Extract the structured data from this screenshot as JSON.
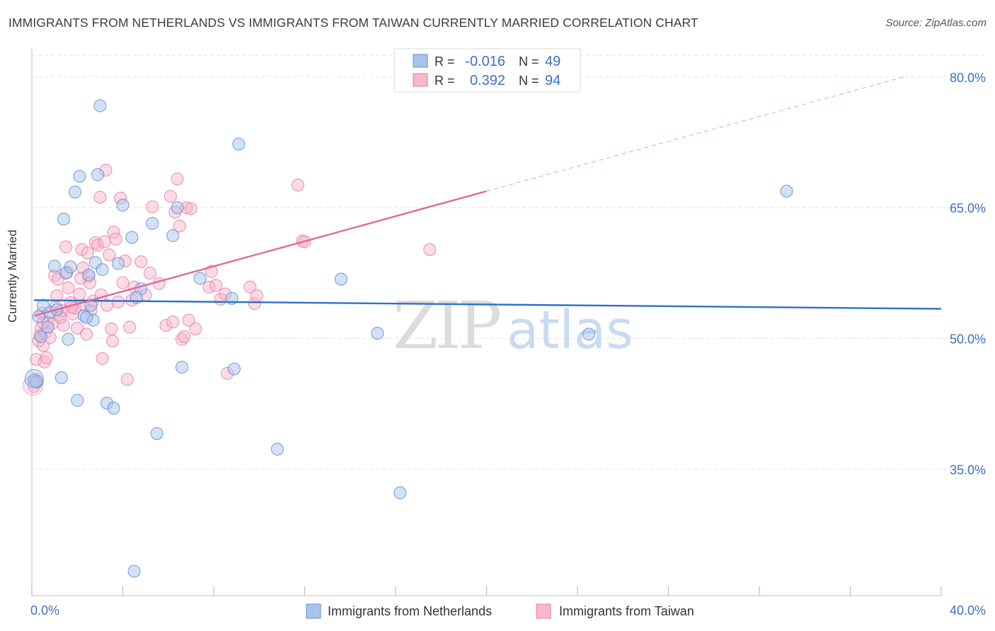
{
  "title": "IMMIGRANTS FROM NETHERLANDS VS IMMIGRANTS FROM TAIWAN CURRENTLY MARRIED CORRELATION CHART",
  "source": "Source: ZipAtlas.com",
  "watermark": {
    "zip": "ZIP",
    "atlas": "atlas"
  },
  "legend_stats": [
    {
      "r_label": "R =",
      "r_value": "-0.016",
      "n_label": "N =",
      "n_value": "49"
    },
    {
      "r_label": "R =",
      "r_value": "0.392",
      "n_label": "N =",
      "n_value": "94"
    }
  ],
  "colors": {
    "blue_fill": "#a9c4ec",
    "blue_stroke": "#5c8fd6",
    "blue_line": "#2f6fcc",
    "pink_fill": "#f7b8cb",
    "pink_stroke": "#e67ea0",
    "pink_line": "#e0689a",
    "axis_text": "#3b72c4",
    "grid": "#e2e2e2"
  },
  "chart_data": {
    "type": "scatter",
    "title": "IMMIGRANTS FROM NETHERLANDS VS IMMIGRANTS FROM TAIWAN CURRENTLY MARRIED CORRELATION CHART",
    "xlabel": "",
    "ylabel": "Currently Married",
    "xlim": [
      0,
      40
    ],
    "ylim": [
      20.5,
      82.5
    ],
    "x_tick_labels": [
      "0.0%",
      "40.0%"
    ],
    "y_ticks": [
      35,
      50,
      65,
      80
    ],
    "y_tick_labels": [
      "35.0%",
      "50.0%",
      "65.0%",
      "80.0%"
    ],
    "grid": true,
    "legend_position": "bottom-center",
    "series": [
      {
        "name": "Immigrants from Netherlands",
        "color": "#a9c4ec",
        "r": -0.016,
        "n": 49,
        "trend": {
          "x": [
            0.1,
            40
          ],
          "y": [
            54.4,
            53.4
          ]
        },
        "points": [
          [
            0.1,
            45.2
          ],
          [
            0.3,
            52.5
          ],
          [
            0.4,
            50.2
          ],
          [
            0.5,
            53.8
          ],
          [
            0.7,
            51.3
          ],
          [
            0.8,
            53.0
          ],
          [
            1.0,
            58.3
          ],
          [
            1.1,
            53.3
          ],
          [
            1.3,
            45.5
          ],
          [
            1.4,
            63.7
          ],
          [
            1.5,
            57.5
          ],
          [
            1.6,
            49.9
          ],
          [
            1.7,
            58.2
          ],
          [
            1.9,
            66.8
          ],
          [
            2.0,
            42.9
          ],
          [
            2.1,
            68.6
          ],
          [
            2.3,
            52.6
          ],
          [
            2.5,
            57.3
          ],
          [
            2.6,
            53.8
          ],
          [
            2.7,
            52.1
          ],
          [
            2.8,
            58.7
          ],
          [
            2.9,
            68.8
          ],
          [
            3.0,
            76.7
          ],
          [
            3.1,
            57.9
          ],
          [
            3.3,
            42.6
          ],
          [
            3.6,
            42.0
          ],
          [
            3.8,
            58.6
          ],
          [
            4.0,
            65.3
          ],
          [
            4.4,
            61.6
          ],
          [
            4.5,
            23.3
          ],
          [
            4.8,
            55.7
          ],
          [
            5.3,
            63.2
          ],
          [
            5.5,
            39.1
          ],
          [
            6.2,
            61.8
          ],
          [
            6.4,
            65.0
          ],
          [
            6.6,
            46.7
          ],
          [
            7.4,
            56.9
          ],
          [
            8.8,
            54.6
          ],
          [
            8.9,
            46.5
          ],
          [
            9.1,
            72.3
          ],
          [
            10.8,
            37.3
          ],
          [
            13.6,
            56.8
          ],
          [
            15.2,
            50.6
          ],
          [
            16.2,
            32.3
          ],
          [
            24.5,
            50.5
          ],
          [
            33.2,
            66.9
          ],
          [
            0.2,
            45.0
          ],
          [
            2.4,
            52.4
          ],
          [
            4.6,
            54.7
          ]
        ]
      },
      {
        "name": "Immigrants from Taiwan",
        "color": "#f7b8cb",
        "r": 0.392,
        "n": 94,
        "trend": {
          "x": [
            0.1,
            20
          ],
          "y": [
            52.6,
            66.9
          ]
        },
        "trend_extension": {
          "x": [
            20,
            38.5
          ],
          "y": [
            66.9,
            80.1
          ]
        },
        "points": [
          [
            0.1,
            44.5
          ],
          [
            0.15,
            45.3
          ],
          [
            0.2,
            47.6
          ],
          [
            0.25,
            45.1
          ],
          [
            0.3,
            49.7
          ],
          [
            0.35,
            50.4
          ],
          [
            0.4,
            51.2
          ],
          [
            0.45,
            52.9
          ],
          [
            0.5,
            49.2
          ],
          [
            0.55,
            47.3
          ],
          [
            0.6,
            50.7
          ],
          [
            0.65,
            47.8
          ],
          [
            0.7,
            51.9
          ],
          [
            0.8,
            50.1
          ],
          [
            0.9,
            51.7
          ],
          [
            1.0,
            57.2
          ],
          [
            1.05,
            53.6
          ],
          [
            1.1,
            54.9
          ],
          [
            1.15,
            56.8
          ],
          [
            1.2,
            52.7
          ],
          [
            1.3,
            53.2
          ],
          [
            1.4,
            51.5
          ],
          [
            1.5,
            60.5
          ],
          [
            1.55,
            57.6
          ],
          [
            1.6,
            55.8
          ],
          [
            1.7,
            54.1
          ],
          [
            1.8,
            52.8
          ],
          [
            1.9,
            53.5
          ],
          [
            2.0,
            51.2
          ],
          [
            2.1,
            55.1
          ],
          [
            2.2,
            60.2
          ],
          [
            2.25,
            58.1
          ],
          [
            2.3,
            53.8
          ],
          [
            2.4,
            50.5
          ],
          [
            2.45,
            59.8
          ],
          [
            2.5,
            57.1
          ],
          [
            2.55,
            56.4
          ],
          [
            2.6,
            53.2
          ],
          [
            2.7,
            54.3
          ],
          [
            2.8,
            61.0
          ],
          [
            2.9,
            60.7
          ],
          [
            3.0,
            66.2
          ],
          [
            3.05,
            55.0
          ],
          [
            3.1,
            47.7
          ],
          [
            3.2,
            61.1
          ],
          [
            3.25,
            69.3
          ],
          [
            3.3,
            53.8
          ],
          [
            3.4,
            59.6
          ],
          [
            3.5,
            51.1
          ],
          [
            3.55,
            49.7
          ],
          [
            3.6,
            62.2
          ],
          [
            3.7,
            61.4
          ],
          [
            3.8,
            54.2
          ],
          [
            3.9,
            66.1
          ],
          [
            4.0,
            56.4
          ],
          [
            4.1,
            58.9
          ],
          [
            4.2,
            45.3
          ],
          [
            4.3,
            51.3
          ],
          [
            4.4,
            54.4
          ],
          [
            4.5,
            55.9
          ],
          [
            4.8,
            58.8
          ],
          [
            5.0,
            55.0
          ],
          [
            5.2,
            57.5
          ],
          [
            5.3,
            65.1
          ],
          [
            5.6,
            56.3
          ],
          [
            5.9,
            51.5
          ],
          [
            6.1,
            66.3
          ],
          [
            6.2,
            51.9
          ],
          [
            6.3,
            64.5
          ],
          [
            6.4,
            68.3
          ],
          [
            6.5,
            62.9
          ],
          [
            6.6,
            49.9
          ],
          [
            6.7,
            50.2
          ],
          [
            6.8,
            65.0
          ],
          [
            6.9,
            52.1
          ],
          [
            7.0,
            64.9
          ],
          [
            7.2,
            51.1
          ],
          [
            7.8,
            55.9
          ],
          [
            7.9,
            57.7
          ],
          [
            8.1,
            56.1
          ],
          [
            8.3,
            54.5
          ],
          [
            8.5,
            55.1
          ],
          [
            8.6,
            46.0
          ],
          [
            9.6,
            55.9
          ],
          [
            9.8,
            54.0
          ],
          [
            9.9,
            54.9
          ],
          [
            11.7,
            67.6
          ],
          [
            11.9,
            61.2
          ],
          [
            12.0,
            61.1
          ],
          [
            17.5,
            60.2
          ],
          [
            0.5,
            51.8
          ],
          [
            1.25,
            52.4
          ],
          [
            2.15,
            56.9
          ],
          [
            1.75,
            53.6
          ]
        ]
      }
    ]
  }
}
